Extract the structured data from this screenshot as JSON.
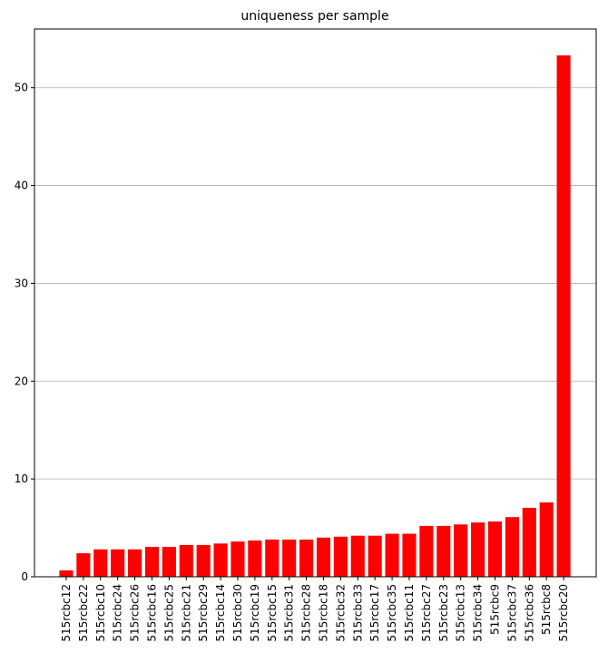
{
  "chart_data": {
    "type": "bar",
    "title": "uniqueness per sample",
    "categories": [
      "515rcbc12",
      "515rcbc22",
      "515rcbc10",
      "515rcbc24",
      "515rcbc26",
      "515rcbc16",
      "515rcbc25",
      "515rcbc21",
      "515rcbc29",
      "515rcbc14",
      "515rcbc30",
      "515rcbc19",
      "515rcbc15",
      "515rcbc31",
      "515rcbc28",
      "515rcbc18",
      "515rcbc32",
      "515rcbc33",
      "515rcbc17",
      "515rcbc35",
      "515rcbc11",
      "515rcbc27",
      "515rcbc23",
      "515rcbc13",
      "515rcbc34",
      "515rcbc9",
      "515rcbc37",
      "515rcbc36",
      "515rcbc8",
      "515rcbc20"
    ],
    "values": [
      0.65,
      2.4,
      2.8,
      2.8,
      2.8,
      3.05,
      3.05,
      3.25,
      3.25,
      3.4,
      3.6,
      3.7,
      3.8,
      3.8,
      3.8,
      4.0,
      4.1,
      4.2,
      4.2,
      4.4,
      4.4,
      5.2,
      5.2,
      5.35,
      5.55,
      5.65,
      6.1,
      7.05,
      7.6,
      53.3
    ],
    "color": "#ff0000",
    "ylim": [
      0,
      56
    ],
    "yticks": [
      0,
      10,
      20,
      30,
      40,
      50
    ],
    "grid": true
  }
}
